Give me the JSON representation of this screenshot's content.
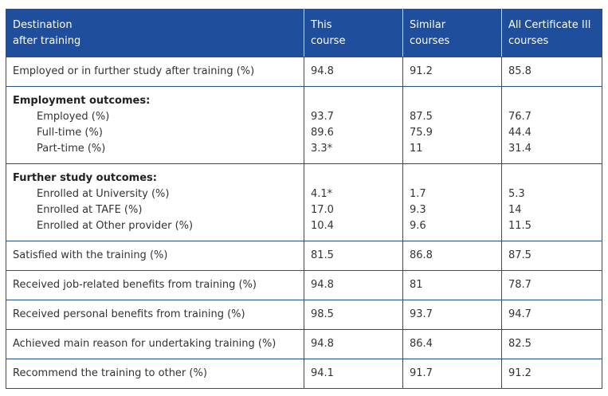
{
  "header": {
    "col1_line1": "Destination",
    "col1_line2": "after training",
    "col2_line1": "This",
    "col2_line2": "course",
    "col3_line1": "Similar",
    "col3_line2": "courses",
    "col4_line1": "All Certificate III",
    "col4_line2": "courses"
  },
  "rows": {
    "employed_or_study": {
      "label": "Employed or in further study after training (%)",
      "this": "94.8",
      "similar": "91.2",
      "all": "85.8"
    },
    "employment": {
      "title": "Employment outcomes:",
      "items": [
        {
          "label": "Employed (%)",
          "this": "93.7",
          "similar": "87.5",
          "all": "76.7"
        },
        {
          "label": "Full-time (%)",
          "this": "89.6",
          "similar": "75.9",
          "all": "44.4"
        },
        {
          "label": "Part-time (%)",
          "this": "3.3*",
          "similar": "11",
          "all": "31.4"
        }
      ]
    },
    "further_study": {
      "title": "Further study outcomes:",
      "items": [
        {
          "label": "Enrolled at University (%)",
          "this": "4.1*",
          "similar": "1.7",
          "all": "5.3"
        },
        {
          "label": "Enrolled at TAFE (%)",
          "this": "17.0",
          "similar": "9.3",
          "all": "14"
        },
        {
          "label": "Enrolled at Other provider (%)",
          "this": "10.4",
          "similar": "9.6",
          "all": "11.5"
        }
      ]
    },
    "satisfied": {
      "label": "Satisfied with the training (%)",
      "this": "81.5",
      "similar": "86.8",
      "all": "87.5"
    },
    "job_benefits": {
      "label": "Received job-related benefits from training (%)",
      "this": "94.8",
      "similar": "81",
      "all": "78.7"
    },
    "personal_benefits": {
      "label": "Received personal benefits from training (%)",
      "this": "98.5",
      "similar": "93.7",
      "all": "94.7"
    },
    "main_reason": {
      "label": "Achieved main reason for undertaking training (%)",
      "this": "94.8",
      "similar": "86.4",
      "all": "82.5"
    },
    "recommend": {
      "label": "Recommend the training to other (%)",
      "this": "94.1",
      "similar": "91.7",
      "all": "91.2"
    }
  },
  "colors": {
    "header_bg": "#1f4e9c",
    "border": "#1f4e9c",
    "header_text": "#ffffff"
  }
}
